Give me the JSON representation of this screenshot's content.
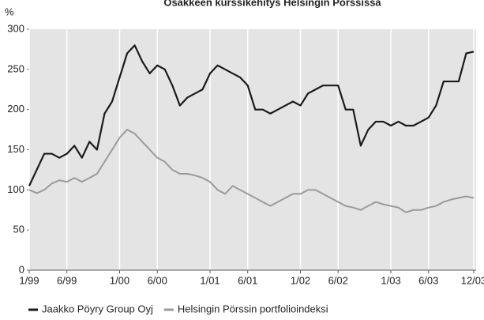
{
  "chart_data": {
    "type": "line",
    "title": "Osakkeen kurssikehitys Helsingin Pörssissä",
    "y_label": "%",
    "x": [
      "1/99",
      "2/99",
      "3/99",
      "4/99",
      "5/99",
      "6/99",
      "7/99",
      "8/99",
      "9/99",
      "10/99",
      "11/99",
      "12/99",
      "1/00",
      "2/00",
      "3/00",
      "4/00",
      "5/00",
      "6/00",
      "7/00",
      "8/00",
      "9/00",
      "10/00",
      "11/00",
      "12/00",
      "1/01",
      "2/01",
      "3/01",
      "4/01",
      "5/01",
      "6/01",
      "7/01",
      "8/01",
      "9/01",
      "10/01",
      "11/01",
      "12/01",
      "1/02",
      "2/02",
      "3/02",
      "4/02",
      "5/02",
      "6/02",
      "7/02",
      "8/02",
      "9/02",
      "10/02",
      "11/02",
      "12/02",
      "1/03",
      "2/03",
      "3/03",
      "4/03",
      "5/03",
      "6/03",
      "7/03",
      "8/03",
      "9/03",
      "10/03",
      "11/03",
      "12/03"
    ],
    "series": [
      {
        "name": "Jaakko Pöyry Group Oyj",
        "color": "#1a1a1a",
        "values": [
          105,
          125,
          145,
          145,
          140,
          145,
          155,
          140,
          160,
          150,
          195,
          210,
          240,
          270,
          280,
          260,
          245,
          255,
          250,
          230,
          205,
          215,
          220,
          225,
          245,
          255,
          250,
          245,
          240,
          230,
          200,
          200,
          195,
          200,
          205,
          210,
          205,
          220,
          225,
          230,
          230,
          230,
          200,
          200,
          155,
          175,
          185,
          185,
          180,
          185,
          180,
          180,
          185,
          190,
          205,
          235,
          235,
          235,
          270,
          272
        ]
      },
      {
        "name": "Helsingin Pörssin portfolioindeksi",
        "color": "#9a9a9a",
        "values": [
          100,
          96,
          100,
          108,
          112,
          110,
          115,
          110,
          115,
          120,
          135,
          150,
          165,
          175,
          170,
          160,
          150,
          140,
          135,
          125,
          120,
          120,
          118,
          115,
          110,
          100,
          95,
          105,
          100,
          95,
          90,
          85,
          80,
          85,
          90,
          95,
          95,
          100,
          100,
          95,
          90,
          85,
          80,
          78,
          75,
          80,
          85,
          82,
          80,
          78,
          72,
          75,
          75,
          78,
          80,
          85,
          88,
          90,
          92,
          90
        ]
      }
    ],
    "xticks": [
      "1/99",
      "6/99",
      "1/00",
      "6/00",
      "1/01",
      "6/01",
      "1/02",
      "6/02",
      "1/03",
      "6/03",
      "12/03"
    ],
    "ylim": [
      0,
      300
    ],
    "yticks": [
      0,
      50,
      100,
      150,
      200,
      250,
      300
    ],
    "grid": true,
    "legend": "bottom"
  }
}
